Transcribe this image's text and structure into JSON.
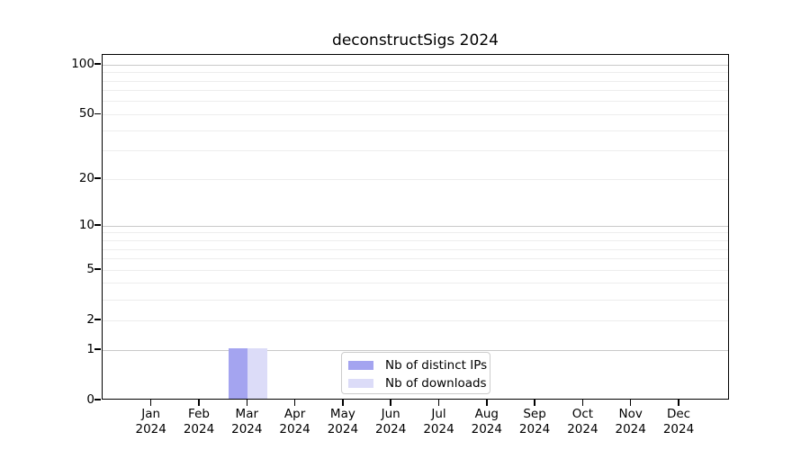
{
  "figure": {
    "background": "#ffffff",
    "axis_color": "#000000",
    "major_grid_color": "#c9c9c9",
    "minor_grid_color": "#ededed"
  },
  "chart_data": {
    "type": "bar",
    "title": "deconstructSigs 2024",
    "categories": [
      "Jan",
      "Feb",
      "Mar",
      "Apr",
      "May",
      "Jun",
      "Jul",
      "Aug",
      "Sep",
      "Oct",
      "Nov",
      "Dec"
    ],
    "category_year": "2024",
    "series": [
      {
        "name": "Nb of distinct IPs",
        "color": "#a4a4f0",
        "values": [
          0,
          0,
          1,
          0,
          0,
          0,
          0,
          0,
          0,
          0,
          0,
          0
        ]
      },
      {
        "name": "Nb of downloads",
        "color": "#dcdcf8",
        "values": [
          0,
          0,
          1,
          0,
          0,
          0,
          0,
          0,
          0,
          0,
          0,
          0
        ]
      }
    ],
    "xlabel": "",
    "ylabel": "",
    "y_axis": {
      "scale": "log1p",
      "max": 115,
      "ticks": [
        0,
        1,
        2,
        5,
        10,
        20,
        50,
        100
      ],
      "major_gridlines": [
        1,
        10,
        100
      ],
      "minor_gridlines": [
        2,
        3,
        4,
        5,
        6,
        7,
        8,
        9,
        20,
        30,
        40,
        50,
        60,
        70,
        80,
        90
      ]
    },
    "grid": true,
    "legend": {
      "position": "bottom-center"
    }
  }
}
